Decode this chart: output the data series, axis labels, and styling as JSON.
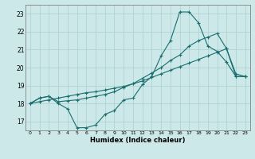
{
  "xlabel": "Humidex (Indice chaleur)",
  "xlim": [
    -0.5,
    23.5
  ],
  "ylim": [
    16.5,
    23.5
  ],
  "xticks": [
    0,
    1,
    2,
    3,
    4,
    5,
    6,
    7,
    8,
    9,
    10,
    11,
    12,
    13,
    14,
    15,
    16,
    17,
    18,
    19,
    20,
    21,
    22,
    23
  ],
  "yticks": [
    17,
    18,
    19,
    20,
    21,
    22,
    23
  ],
  "bg_color": "#cce8e8",
  "line_color": "#1a6e6e",
  "grid_color": "#aacfcf",
  "line1_y": [
    18.0,
    18.3,
    18.4,
    18.0,
    17.7,
    16.65,
    16.65,
    16.8,
    17.4,
    17.6,
    18.2,
    18.3,
    19.05,
    19.5,
    20.65,
    21.5,
    23.1,
    23.1,
    22.5,
    21.2,
    20.9,
    20.3,
    19.5,
    19.5
  ],
  "line2_y": [
    18.0,
    18.3,
    18.4,
    18.1,
    18.15,
    18.2,
    18.3,
    18.4,
    18.5,
    18.65,
    18.9,
    19.1,
    19.4,
    19.7,
    20.0,
    20.4,
    20.7,
    21.2,
    21.5,
    21.7,
    21.9,
    21.05,
    19.65,
    19.5
  ],
  "line3_y": [
    18.0,
    18.1,
    18.2,
    18.3,
    18.4,
    18.5,
    18.6,
    18.65,
    18.75,
    18.85,
    18.95,
    19.1,
    19.25,
    19.45,
    19.65,
    19.85,
    20.05,
    20.25,
    20.45,
    20.65,
    20.85,
    21.05,
    19.5,
    19.5
  ]
}
